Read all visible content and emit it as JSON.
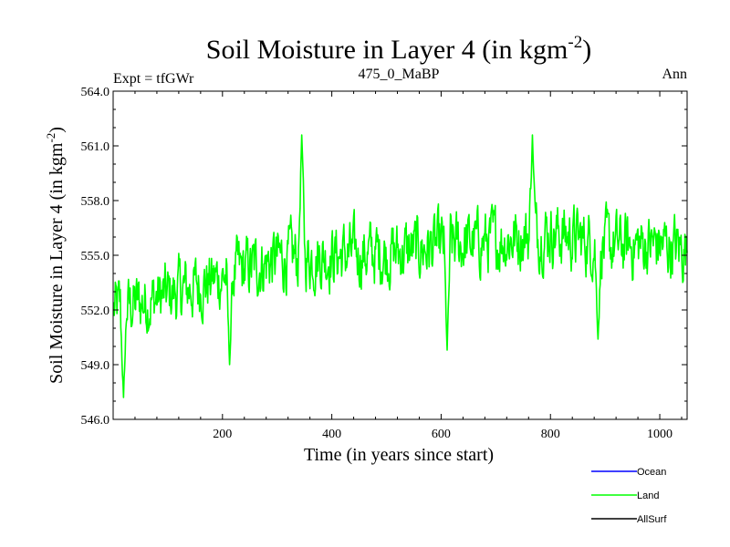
{
  "chart_data": {
    "type": "line",
    "title": "Soil Moisture in Layer 4 (in kgm",
    "title_sup": "-2",
    "title_close": ")",
    "subtitle_left": "Expt = tfGWr",
    "subtitle_center": "475_0_MaBP",
    "subtitle_right": "Ann",
    "xlabel": "Time (in years since start)",
    "ylabel": "Soil Moisture in Layer 4 (in kgm",
    "ylabel_sup": "-2",
    "ylabel_close": ")",
    "xlim": [
      0,
      1050
    ],
    "ylim": [
      546.0,
      564.0
    ],
    "xticks": [
      200,
      400,
      600,
      800,
      1000
    ],
    "xtick_labels": [
      "200",
      "400",
      "600",
      "800",
      "1000"
    ],
    "yticks": [
      546,
      549,
      552,
      555,
      558,
      561,
      564
    ],
    "ytick_labels": [
      "546.0",
      "549.0",
      "552.0",
      "555.0",
      "558.0",
      "561.0",
      "564.0"
    ],
    "legend_position": "bottom-right",
    "legend": [
      {
        "name": "Ocean",
        "color": "#0000ff"
      },
      {
        "name": "Land",
        "color": "#00ff00"
      },
      {
        "name": "AllSurf",
        "color": "#000000"
      }
    ],
    "series": [
      {
        "name": "Land",
        "color": "#00ff00",
        "x_start": 1,
        "x_step": 1,
        "count": 1050,
        "approx_trend": [
          {
            "x": 1,
            "y": 552.0
          },
          {
            "x": 100,
            "y": 552.8
          },
          {
            "x": 200,
            "y": 553.8
          },
          {
            "x": 300,
            "y": 554.8
          },
          {
            "x": 400,
            "y": 555.0
          },
          {
            "x": 500,
            "y": 555.1
          },
          {
            "x": 600,
            "y": 555.5
          },
          {
            "x": 700,
            "y": 555.8
          },
          {
            "x": 800,
            "y": 556.3
          },
          {
            "x": 900,
            "y": 555.5
          },
          {
            "x": 1000,
            "y": 555.6
          },
          {
            "x": 1050,
            "y": 555.3
          }
        ],
        "peaks": [
          {
            "x": 19,
            "y": 547.2
          },
          {
            "x": 213,
            "y": 549.0
          },
          {
            "x": 345,
            "y": 561.6
          },
          {
            "x": 611,
            "y": 549.8
          },
          {
            "x": 767,
            "y": 561.6
          },
          {
            "x": 887,
            "y": 550.4
          }
        ],
        "noise_amplitude": 1.4
      }
    ]
  }
}
